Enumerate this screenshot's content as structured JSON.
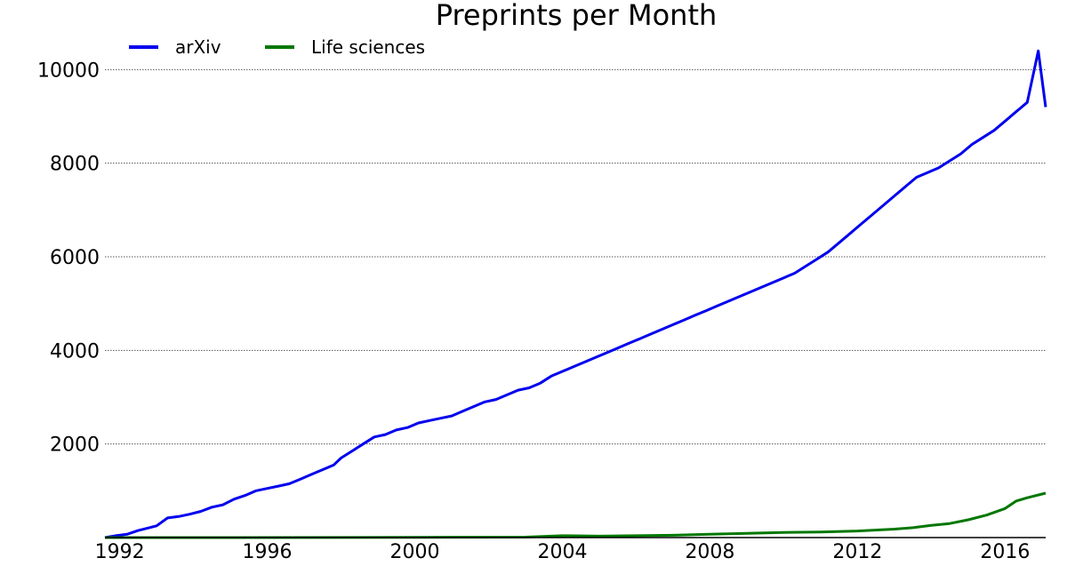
{
  "chart_data": {
    "type": "line",
    "title": "Preprints per Month",
    "xlabel": "",
    "ylabel": "",
    "xlim": [
      1991.6,
      2017.1
    ],
    "ylim": [
      0,
      10500
    ],
    "x_ticks": [
      1992,
      1996,
      2000,
      2004,
      2008,
      2012,
      2016
    ],
    "y_ticks": [
      2000,
      4000,
      6000,
      8000,
      10000
    ],
    "grid": "horizontal dotted",
    "legend": "top-left",
    "series": [
      {
        "name": "arXiv",
        "color": "#0000ee",
        "points": [
          [
            1991.6,
            0
          ],
          [
            1991.9,
            40
          ],
          [
            1992.2,
            70
          ],
          [
            1992.5,
            150
          ],
          [
            1992.8,
            210
          ],
          [
            1993.0,
            250
          ],
          [
            1993.3,
            420
          ],
          [
            1993.6,
            450
          ],
          [
            1993.9,
            500
          ],
          [
            1994.2,
            560
          ],
          [
            1994.5,
            650
          ],
          [
            1994.8,
            700
          ],
          [
            1995.1,
            820
          ],
          [
            1995.4,
            900
          ],
          [
            1995.7,
            1000
          ],
          [
            1996.0,
            1050
          ],
          [
            1996.3,
            1100
          ],
          [
            1996.6,
            1150
          ],
          [
            1996.9,
            1250
          ],
          [
            1997.2,
            1350
          ],
          [
            1997.5,
            1450
          ],
          [
            1997.8,
            1550
          ],
          [
            1998.0,
            1700
          ],
          [
            1998.3,
            1850
          ],
          [
            1998.6,
            2000
          ],
          [
            1998.9,
            2150
          ],
          [
            1999.2,
            2200
          ],
          [
            1999.5,
            2300
          ],
          [
            1999.8,
            2350
          ],
          [
            2000.1,
            2450
          ],
          [
            2000.4,
            2500
          ],
          [
            2000.7,
            2550
          ],
          [
            2001.0,
            2600
          ],
          [
            2001.3,
            2700
          ],
          [
            2001.6,
            2800
          ],
          [
            2001.9,
            2900
          ],
          [
            2002.2,
            2950
          ],
          [
            2002.5,
            3050
          ],
          [
            2002.8,
            3150
          ],
          [
            2003.1,
            3200
          ],
          [
            2003.4,
            3300
          ],
          [
            2003.7,
            3450
          ],
          [
            2004.0,
            3550
          ],
          [
            2004.3,
            3650
          ],
          [
            2004.6,
            3750
          ],
          [
            2004.9,
            3850
          ],
          [
            2005.2,
            3950
          ],
          [
            2005.5,
            4050
          ],
          [
            2005.8,
            4150
          ],
          [
            2006.1,
            4250
          ],
          [
            2006.4,
            4350
          ],
          [
            2006.7,
            4450
          ],
          [
            2007.0,
            4550
          ],
          [
            2007.3,
            4650
          ],
          [
            2007.6,
            4750
          ],
          [
            2007.9,
            4850
          ],
          [
            2008.2,
            4950
          ],
          [
            2008.5,
            5050
          ],
          [
            2008.8,
            5150
          ],
          [
            2009.1,
            5250
          ],
          [
            2009.4,
            5350
          ],
          [
            2009.7,
            5450
          ],
          [
            2010.0,
            5550
          ],
          [
            2010.3,
            5650
          ],
          [
            2010.6,
            5800
          ],
          [
            2010.9,
            5950
          ],
          [
            2011.2,
            6100
          ],
          [
            2011.5,
            6300
          ],
          [
            2011.8,
            6500
          ],
          [
            2012.1,
            6700
          ],
          [
            2012.4,
            6900
          ],
          [
            2012.7,
            7100
          ],
          [
            2013.0,
            7300
          ],
          [
            2013.3,
            7500
          ],
          [
            2013.6,
            7700
          ],
          [
            2013.9,
            7800
          ],
          [
            2014.2,
            7900
          ],
          [
            2014.5,
            8050
          ],
          [
            2014.8,
            8200
          ],
          [
            2015.1,
            8400
          ],
          [
            2015.4,
            8550
          ],
          [
            2015.7,
            8700
          ],
          [
            2016.0,
            8900
          ],
          [
            2016.3,
            9100
          ],
          [
            2016.6,
            9300
          ],
          [
            2016.9,
            10400
          ],
          [
            2017.1,
            9200
          ]
        ]
      },
      {
        "name": "Life sciences",
        "color": "#007700",
        "points": [
          [
            1991.6,
            0
          ],
          [
            1995.0,
            0
          ],
          [
            2000.0,
            5
          ],
          [
            2003.0,
            10
          ],
          [
            2004.0,
            40
          ],
          [
            2005.0,
            30
          ],
          [
            2006.0,
            40
          ],
          [
            2007.0,
            50
          ],
          [
            2008.0,
            70
          ],
          [
            2009.0,
            90
          ],
          [
            2010.0,
            110
          ],
          [
            2011.0,
            120
          ],
          [
            2012.0,
            140
          ],
          [
            2013.0,
            180
          ],
          [
            2013.5,
            210
          ],
          [
            2014.0,
            260
          ],
          [
            2014.5,
            300
          ],
          [
            2015.0,
            380
          ],
          [
            2015.5,
            480
          ],
          [
            2016.0,
            620
          ],
          [
            2016.3,
            780
          ],
          [
            2016.6,
            850
          ],
          [
            2017.1,
            950
          ]
        ]
      }
    ]
  }
}
